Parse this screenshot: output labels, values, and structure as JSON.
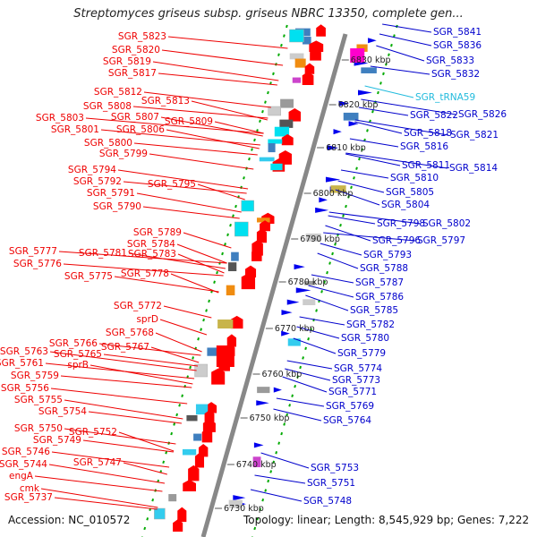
{
  "title": "Streptomyces griseus subsp. griseus NBRC 13350, complete gen...",
  "footer": {
    "accession": "Accession: NC_010572",
    "summary": "Topology: linear; Length: 8,545,929 bp; Genes: 7,222"
  },
  "colors": {
    "left_label": "#ee0000",
    "right_label": "#0000cc",
    "rna_label": "#22bbdd",
    "backbone": "#888888",
    "tick": "#00aa00",
    "plus_strand": "#ff0000",
    "minus_strand": "#0000ee"
  },
  "kbp_ticks": [
    "6830 kbp",
    "6820 kbp",
    "6810 kbp",
    "6800 kbp",
    "6790 kbp",
    "6780 kbp",
    "6770 kbp",
    "6760 kbp",
    "6750 kbp",
    "6740 kbp",
    "6730 kbp"
  ],
  "left_genes": [
    "SGR_5823",
    "SGR_5820",
    "SGR_5819",
    "SGR_5817",
    "SGR_5812",
    "SGR_5813",
    "SGR_5808",
    "SGR_5803",
    "SGR_5807",
    "SGR_5809",
    "SGR_5801",
    "SGR_5806",
    "SGR_5800",
    "SGR_5799",
    "SGR_5794",
    "SGR_5792",
    "SGR_5795",
    "SGR_5791",
    "SGR_5790",
    "SGR_5789",
    "SGR_5784",
    "SGR_5777",
    "SGR_5781",
    "SGR_5783",
    "SGR_5776",
    "SGR_5775",
    "SGR_5778",
    "SGR_5772",
    "sprD",
    "SGR_5768",
    "SGR_5766",
    "SGR_5767",
    "SGR_5763",
    "SGR_5765",
    "SGR_5761",
    "sprB",
    "SGR_5759",
    "SGR_5756",
    "SGR_5755",
    "SGR_5754",
    "SGR_5750",
    "SGR_5752",
    "SGR_5749",
    "SGR_5746",
    "SGR_5744",
    "SGR_5747",
    "engA",
    "cmk",
    "SGR_5737"
  ],
  "right_genes": [
    "SGR_5841",
    "SGR_5836",
    "SGR_5833",
    "SGR_5832",
    "SGR_tRNA59",
    "SGR_5826",
    "SGR_5822",
    "SGR_5818",
    "SGR_5821",
    "SGR_5816",
    "SGR_5811",
    "SGR_5814",
    "SGR_5810",
    "SGR_5805",
    "SGR_5804",
    "SGR_5798",
    "SGR_5802",
    "SGR_5796",
    "SGR_5797",
    "SGR_5793",
    "SGR_5788",
    "SGR_5787",
    "SGR_5786",
    "SGR_5785",
    "SGR_5782",
    "SGR_5780",
    "SGR_5779",
    "SGR_5774",
    "SGR_5773",
    "SGR_5771",
    "SGR_5769",
    "SGR_5764",
    "SGR_5753",
    "SGR_5751",
    "SGR_5748"
  ]
}
